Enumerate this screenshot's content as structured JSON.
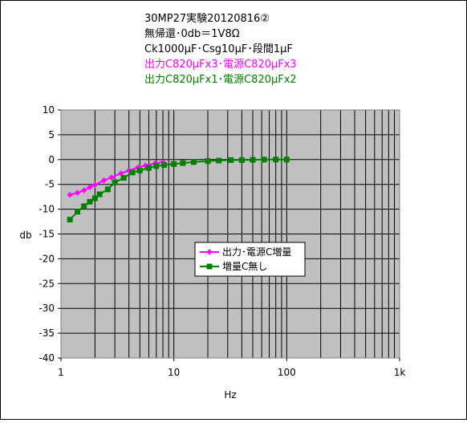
{
  "chart_data": {
    "type": "line",
    "title_lines": [
      {
        "text": "30MP27実験20120816②",
        "color": "#000000"
      },
      {
        "text": "無帰還･0db＝1V8Ω",
        "color": "#000000"
      },
      {
        "text": "Ck1000μF･Csg10μF･段間1μF",
        "color": "#000000"
      },
      {
        "text": "出力C820μFx3･電源C820μFx3",
        "color": "#ff00ff"
      },
      {
        "text": "出力C820μFx1･電源C820μFx2",
        "color": "#008000"
      }
    ],
    "xlabel": "Hz",
    "ylabel": "db",
    "x_scale": "log",
    "xlim": [
      1,
      1000
    ],
    "ylim": [
      -40,
      10
    ],
    "x_tick_labels": [
      {
        "value": 1,
        "label": "1"
      },
      {
        "value": 10,
        "label": "10"
      },
      {
        "value": 100,
        "label": "100"
      },
      {
        "value": 1000,
        "label": "1k"
      }
    ],
    "y_ticks": [
      10,
      5,
      0,
      -5,
      -10,
      -15,
      -20,
      -25,
      -30,
      -35,
      -40
    ],
    "grid": true,
    "plot_background": "#c0c0c0",
    "legend_position": "center-right",
    "series": [
      {
        "name": "出力･電源C増量",
        "color": "#ff00ff",
        "marker": "diamond",
        "x": [
          1.2,
          1.4,
          1.6,
          1.8,
          2,
          2.4,
          2.8,
          3.4,
          4,
          4.8,
          5.6,
          6.8,
          8
        ],
        "y": [
          -7.1,
          -6.7,
          -6.2,
          -5.6,
          -5.1,
          -4.2,
          -3.6,
          -2.8,
          -2.2,
          -1.6,
          -1.2,
          -0.8,
          -0.5
        ]
      },
      {
        "name": "増量C無し",
        "color": "#008000",
        "marker": "square",
        "x": [
          1.2,
          1.4,
          1.6,
          1.8,
          2,
          2.2,
          2.6,
          3,
          3.6,
          4.3,
          5,
          6,
          7,
          8.2,
          10,
          12,
          15,
          20,
          25,
          32,
          40,
          50,
          63,
          80,
          100
        ],
        "y": [
          -12.1,
          -10.5,
          -9.4,
          -8.5,
          -7.8,
          -7.0,
          -6.0,
          -4.6,
          -3.7,
          -2.6,
          -2.2,
          -1.7,
          -1.3,
          -1.1,
          -0.9,
          -0.7,
          -0.5,
          -0.3,
          -0.2,
          -0.1,
          -0.1,
          -0.05,
          0,
          0,
          0
        ]
      }
    ]
  }
}
